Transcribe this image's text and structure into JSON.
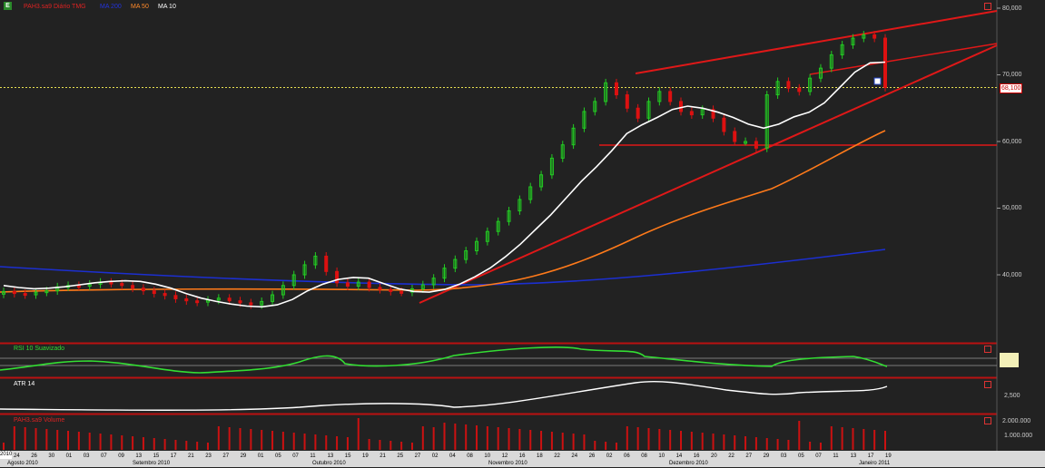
{
  "header": {
    "logo_text": "E",
    "series_label": "PAH3.sa9 Diário TMG",
    "ma_blue_label": "MA 200",
    "ma_orange_label": "MA 50",
    "ma_white_label": "MA 10",
    "arrow": "▾"
  },
  "price_axis": {
    "ticks": [
      "80,000",
      "70,000",
      "60,000",
      "50,000",
      "40,000"
    ],
    "current_price": "68,100"
  },
  "rsi_panel": {
    "title": "RSI 10 Suavizado"
  },
  "atr_panel": {
    "title": "ATR 14",
    "ticks": [
      "2,500"
    ]
  },
  "volume_panel": {
    "title": "PAH3.sa9 Volume",
    "ticks": [
      "2.000.000",
      "1.000.000"
    ]
  },
  "date_axis": {
    "days": [
      "24",
      "26",
      "30",
      "01",
      "03",
      "07",
      "09",
      "13",
      "15",
      "17",
      "21",
      "23",
      "27",
      "29",
      "01",
      "05",
      "07",
      "11",
      "13",
      "15",
      "19",
      "21",
      "25",
      "27",
      "02",
      "04",
      "08",
      "10",
      "12",
      "16",
      "18",
      "22",
      "24",
      "26",
      "02",
      "06",
      "08",
      "10",
      "14",
      "16",
      "20",
      "22",
      "27",
      "29",
      "03",
      "05",
      "07",
      "11",
      "13",
      "17",
      "19"
    ],
    "months": [
      "Agosto 2010",
      "Setembro 2010",
      "Outubro 2010",
      "Novembro 2010",
      "Dezembro 2010",
      "Janeiro 2011"
    ],
    "year_marker": "2010"
  },
  "colors": {
    "background": "#222222",
    "candle_up": "#22cc22",
    "candle_down": "#dd1111",
    "ma_white": "#ffffff",
    "ma_orange": "#ff7a1a",
    "ma_blue": "#1c2fd0",
    "trendline": "#e01818",
    "rsi": "#33dd33",
    "volume": "#cc1111"
  },
  "chart_data": {
    "type": "candlestick",
    "ylim": [
      33,
      81
    ],
    "x_count": 90,
    "prices": [
      37.5,
      37.2,
      37.0,
      37.4,
      37.6,
      38.2,
      38.4,
      38.3,
      38.6,
      38.9,
      38.7,
      38.4,
      38.0,
      37.6,
      37.2,
      36.9,
      36.4,
      36.1,
      35.9,
      36.2,
      36.5,
      36.1,
      35.8,
      35.5,
      36.0,
      37.0,
      38.4,
      40.0,
      41.5,
      42.8,
      40.5,
      38.8,
      38.3,
      38.9,
      38.1,
      37.8,
      37.5,
      37.4,
      37.9,
      38.5,
      39.5,
      41.0,
      42.3,
      43.6,
      45.0,
      46.5,
      48.0,
      49.6,
      51.3,
      53.2,
      55.0,
      57.5,
      59.5,
      62.0,
      64.5,
      66.0,
      68.8,
      67.0,
      65.0,
      63.5,
      66.0,
      67.5,
      66.0,
      64.5,
      64.0,
      64.8,
      63.5,
      61.5,
      60.0,
      60.0,
      59.0,
      67.0,
      69.0,
      68.0,
      67.5,
      69.5,
      71.0,
      73.0,
      74.5,
      75.5,
      76.0,
      75.5,
      68.1
    ],
    "ma10": [
      38.4,
      38.1,
      37.9,
      38.0,
      38.2,
      38.5,
      38.8,
      39.0,
      39.1,
      39.0,
      38.6,
      38.0,
      37.2,
      36.5,
      36.0,
      35.6,
      35.3,
      35.2,
      35.5,
      36.3,
      37.6,
      38.6,
      39.3,
      39.6,
      39.5,
      38.7,
      37.9,
      37.5,
      37.4,
      37.8,
      38.6,
      39.7,
      41.0,
      42.7,
      44.6,
      46.8,
      49.0,
      51.5,
      54.0,
      56.2,
      58.6,
      61.2,
      62.5,
      63.6,
      64.8,
      65.3,
      65.0,
      64.4,
      63.6,
      62.6,
      62.0,
      62.6,
      63.7,
      64.4,
      65.8,
      68.1,
      70.4,
      71.8,
      71.9
    ]
  }
}
